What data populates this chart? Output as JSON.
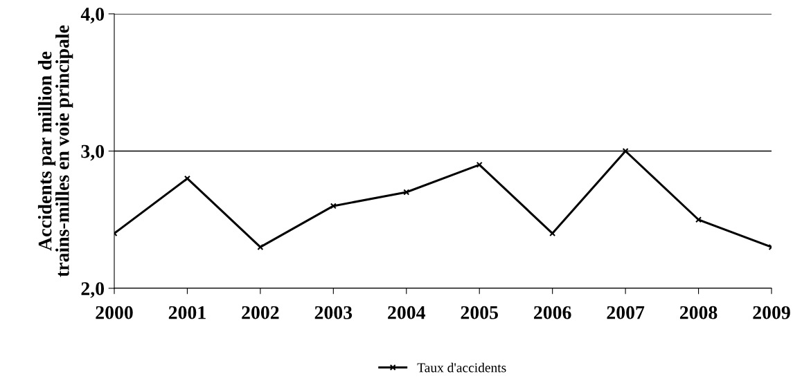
{
  "chart_data": {
    "type": "line",
    "ylabel": "Accidents par million de\ntrains-milles en voie principale",
    "categories": [
      "2000",
      "2001",
      "2002",
      "2003",
      "2004",
      "2005",
      "2006",
      "2007",
      "2008",
      "2009"
    ],
    "series": [
      {
        "name": "Taux d'accidents",
        "color": "#000000",
        "values": [
          2.4,
          2.8,
          2.3,
          2.6,
          2.7,
          2.9,
          2.4,
          3.0,
          2.5,
          2.3
        ]
      }
    ],
    "ylim": [
      2,
      4
    ],
    "yticks": [
      {
        "value": 2,
        "label": "2,0"
      },
      {
        "value": 3,
        "label": "3,0"
      },
      {
        "value": 4,
        "label": "4,0"
      }
    ],
    "grid": "y",
    "legend": "bottom",
    "marker": "cross",
    "line_style": "solid"
  }
}
